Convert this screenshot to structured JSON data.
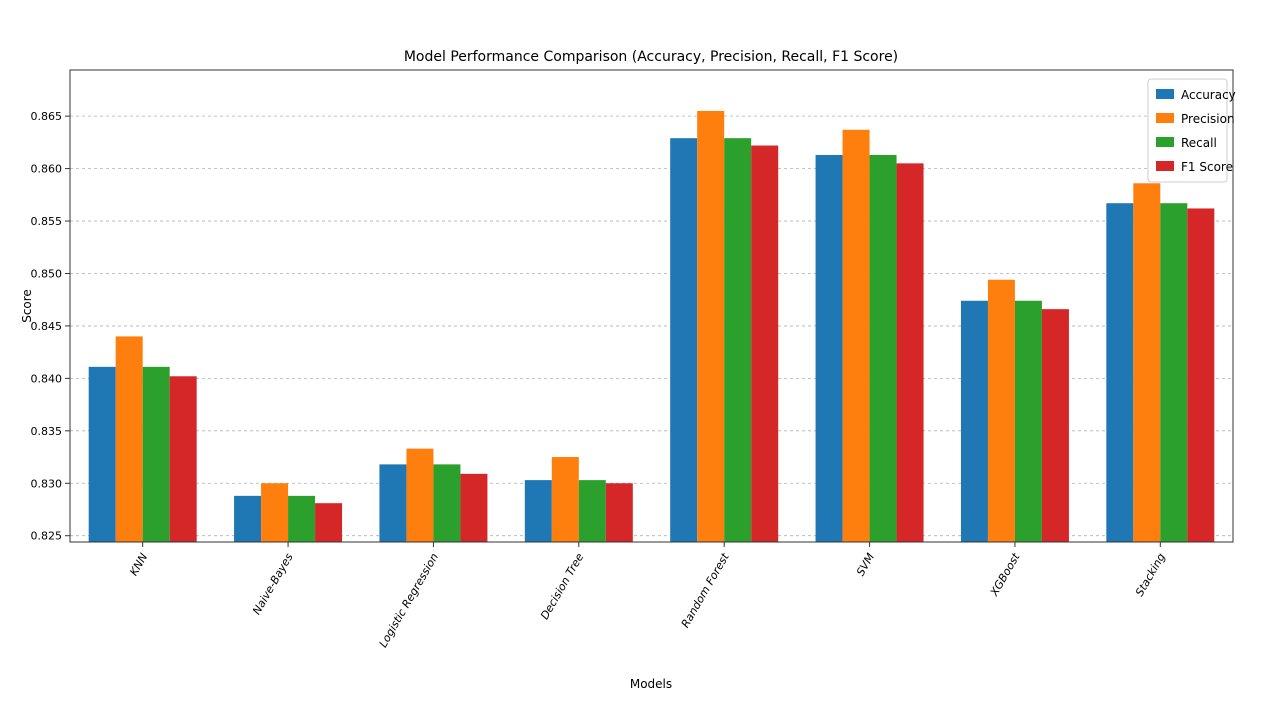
{
  "chart_data": {
    "type": "bar",
    "title": "Model Performance Comparison (Accuracy, Precision, Recall, F1 Score)",
    "xlabel": "Models",
    "ylabel": "Score",
    "categories": [
      "KNN",
      "Naive-Bayes",
      "Logistic Regression",
      "Decision Tree",
      "Random Forest",
      "SVM",
      "XGBoost",
      "Stacking"
    ],
    "series": [
      {
        "name": "Accuracy",
        "color": "#1f77b4",
        "values": [
          0.8411,
          0.8288,
          0.8318,
          0.8303,
          0.8629,
          0.8613,
          0.8474,
          0.8567
        ]
      },
      {
        "name": "Precision",
        "color": "#ff7f0e",
        "values": [
          0.844,
          0.83,
          0.8333,
          0.8325,
          0.8655,
          0.8637,
          0.8494,
          0.8586
        ]
      },
      {
        "name": "Recall",
        "color": "#2ca02c",
        "values": [
          0.8411,
          0.8288,
          0.8318,
          0.8303,
          0.8629,
          0.8613,
          0.8474,
          0.8567
        ]
      },
      {
        "name": "F1 Score",
        "color": "#d62728",
        "values": [
          0.8402,
          0.8281,
          0.8309,
          0.83,
          0.8622,
          0.8605,
          0.8466,
          0.8562
        ]
      }
    ],
    "ylim": [
      0.8244,
      0.8694
    ],
    "yticks": [
      "0.825",
      "0.830",
      "0.835",
      "0.840",
      "0.845",
      "0.850",
      "0.855",
      "0.860",
      "0.865"
    ],
    "grid": "y-dashed",
    "legend_position": "top-right"
  }
}
